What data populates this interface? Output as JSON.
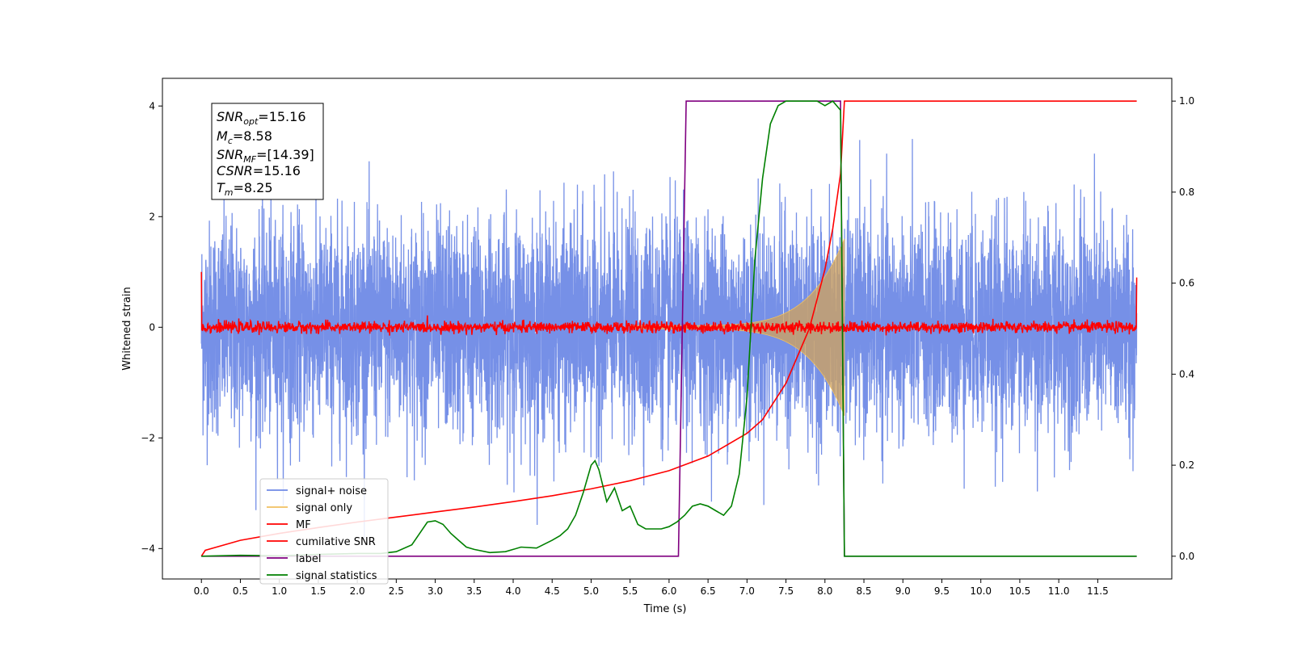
{
  "chart_data": {
    "type": "line",
    "xlabel": "Time (s)",
    "ylabel": "Whitened strain",
    "xlim": [
      -0.5,
      12.45
    ],
    "ylim_left": [
      -4.55,
      4.5
    ],
    "ylim_right": [
      -0.05,
      1.05
    ],
    "x_ticks": [
      "0.0",
      "0.5",
      "1.0",
      "1.5",
      "2.0",
      "2.5",
      "3.0",
      "3.5",
      "4.0",
      "4.5",
      "5.0",
      "5.5",
      "6.0",
      "6.5",
      "7.0",
      "7.5",
      "8.0",
      "8.5",
      "9.0",
      "9.5",
      "10.0",
      "10.5",
      "11.0",
      "11.5"
    ],
    "y_ticks_left": [
      "4",
      "2",
      "0",
      "−2",
      "−4"
    ],
    "y_ticks_right": [
      "1.0",
      "0.8",
      "0.6",
      "0.4",
      "0.2",
      "0.0"
    ],
    "annotation": {
      "snr_opt": "=15.16",
      "mc": "=8.58",
      "snr_mf": "=[14.39]",
      "csnr": "=15.16",
      "tm": "=8.25"
    },
    "legend_position": "lower-left",
    "legend": [
      "signal+ noise",
      "signal only",
      "MF",
      "cumilative SNR",
      "label",
      "signal statistics"
    ],
    "series": [
      {
        "name": "signal+ noise",
        "axis": "left",
        "color": "#6f8ae6",
        "description_amplitude": 1.3,
        "x_range": [
          0,
          12.0
        ]
      },
      {
        "name": "signal only",
        "axis": "left",
        "color": "#f0c060",
        "chirp_start": 5.5,
        "chirp_end": 8.25,
        "peak_amplitude": 1.6
      },
      {
        "name": "MF",
        "axis": "left",
        "color": "#ff0000",
        "x_range": [
          0,
          12.0
        ],
        "edge_values": [
          1.0,
          0.9
        ]
      },
      {
        "name": "cumilative SNR",
        "axis": "right",
        "color": "#ff0000",
        "x": [
          0,
          0.05,
          0.5,
          1,
          1.5,
          2,
          2.5,
          3,
          3.5,
          4,
          4.5,
          5,
          5.5,
          6,
          6.5,
          7,
          7.2,
          7.5,
          7.8,
          8.0,
          8.1,
          8.2,
          8.25,
          12.0
        ],
        "y": [
          0.0,
          0.013,
          0.035,
          0.05,
          0.063,
          0.075,
          0.086,
          0.097,
          0.108,
          0.12,
          0.133,
          0.148,
          0.166,
          0.188,
          0.22,
          0.27,
          0.3,
          0.38,
          0.5,
          0.63,
          0.72,
          0.84,
          1.0,
          1.0
        ]
      },
      {
        "name": "label",
        "axis": "right",
        "color": "#800080",
        "x": [
          0,
          6.12,
          6.22,
          8.2,
          8.25,
          12.0
        ],
        "y": [
          0,
          0,
          1,
          1,
          0,
          0
        ]
      },
      {
        "name": "signal statistics",
        "axis": "right",
        "color": "#008000",
        "x": [
          0,
          0.5,
          1,
          1.5,
          2,
          2.3,
          2.5,
          2.7,
          2.8,
          2.9,
          3.0,
          3.1,
          3.2,
          3.3,
          3.4,
          3.5,
          3.7,
          3.9,
          4.0,
          4.1,
          4.3,
          4.5,
          4.6,
          4.7,
          4.8,
          4.9,
          5.0,
          5.05,
          5.1,
          5.2,
          5.3,
          5.4,
          5.5,
          5.6,
          5.7,
          5.8,
          5.9,
          6.0,
          6.1,
          6.2,
          6.3,
          6.4,
          6.5,
          6.6,
          6.7,
          6.8,
          6.9,
          7.0,
          7.05,
          7.1,
          7.2,
          7.3,
          7.4,
          7.5,
          7.7,
          7.9,
          8.0,
          8.1,
          8.2,
          8.25,
          8.35,
          12.0
        ],
        "y": [
          0.0,
          0.002,
          0.001,
          0.004,
          0.006,
          0.006,
          0.01,
          0.025,
          0.05,
          0.075,
          0.078,
          0.07,
          0.05,
          0.035,
          0.02,
          0.015,
          0.008,
          0.01,
          0.015,
          0.02,
          0.018,
          0.035,
          0.045,
          0.06,
          0.09,
          0.14,
          0.2,
          0.21,
          0.19,
          0.12,
          0.15,
          0.1,
          0.11,
          0.07,
          0.06,
          0.06,
          0.06,
          0.065,
          0.075,
          0.09,
          0.11,
          0.115,
          0.11,
          0.1,
          0.09,
          0.11,
          0.18,
          0.35,
          0.5,
          0.65,
          0.83,
          0.95,
          0.99,
          1.0,
          1.0,
          1.0,
          0.99,
          1.0,
          0.98,
          0.0,
          0.0,
          0.0
        ]
      }
    ]
  }
}
